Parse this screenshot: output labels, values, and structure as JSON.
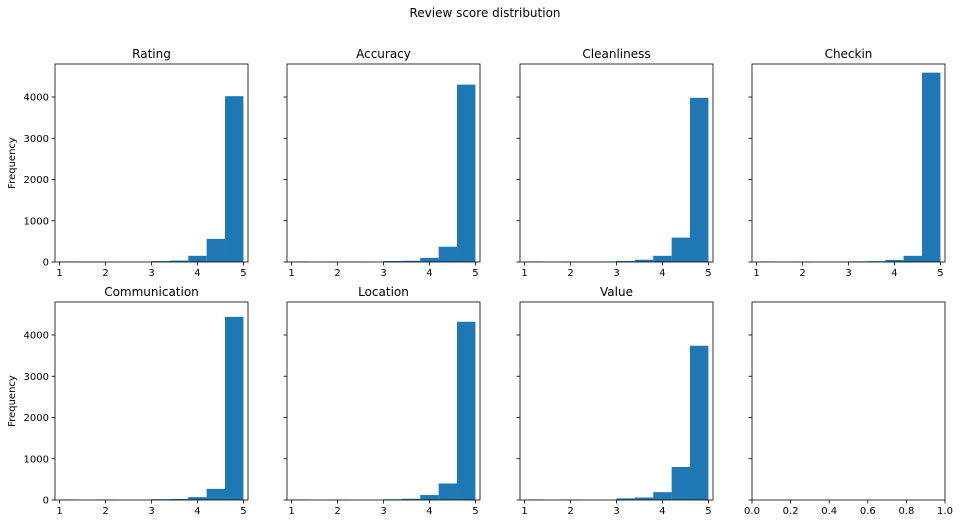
{
  "suptitle": "Review score distribution",
  "chart_data": {
    "type": "bar",
    "title": "Review score distribution",
    "bar_color": "#1f77b4",
    "shared_y": {
      "ylabel": "Frequency",
      "ylim": [
        0,
        4800
      ],
      "yticks": [
        0,
        1000,
        2000,
        3000,
        4000
      ]
    },
    "panels": [
      {
        "title": "Rating",
        "type": "histogram",
        "xlim": [
          0.9,
          5.1
        ],
        "xticks": [
          1,
          2,
          3,
          4,
          5
        ],
        "bin_edges": [
          1.0,
          1.4,
          1.8,
          2.2,
          2.6,
          3.0,
          3.4,
          3.8,
          4.2,
          4.6,
          5.0
        ],
        "counts": [
          12,
          3,
          8,
          2,
          0,
          22,
          35,
          150,
          560,
          4020
        ],
        "ylabel": "Frequency"
      },
      {
        "title": "Accuracy",
        "type": "histogram",
        "xlim": [
          0.9,
          5.1
        ],
        "xticks": [
          1,
          2,
          3,
          4,
          5
        ],
        "bin_edges": [
          1.0,
          1.4,
          1.8,
          2.2,
          2.6,
          3.0,
          3.4,
          3.8,
          4.2,
          4.6,
          5.0
        ],
        "counts": [
          10,
          0,
          8,
          6,
          0,
          25,
          30,
          100,
          370,
          4300
        ],
        "ylabel": ""
      },
      {
        "title": "Cleanliness",
        "type": "histogram",
        "xlim": [
          0.9,
          5.1
        ],
        "xticks": [
          1,
          2,
          3,
          4,
          5
        ],
        "bin_edges": [
          1.0,
          1.4,
          1.8,
          2.2,
          2.6,
          3.0,
          3.4,
          3.8,
          4.2,
          4.6,
          5.0
        ],
        "counts": [
          12,
          0,
          10,
          8,
          6,
          25,
          55,
          150,
          590,
          3980
        ],
        "ylabel": ""
      },
      {
        "title": "Checkin",
        "type": "histogram",
        "xlim": [
          0.9,
          5.1
        ],
        "xticks": [
          1,
          2,
          3,
          4,
          5
        ],
        "bin_edges": [
          1.0,
          1.4,
          1.8,
          2.2,
          2.6,
          3.0,
          3.4,
          3.8,
          4.2,
          4.6,
          5.0
        ],
        "counts": [
          10,
          0,
          8,
          0,
          0,
          15,
          20,
          50,
          150,
          4590
        ],
        "ylabel": ""
      },
      {
        "title": "Communication",
        "type": "histogram",
        "xlim": [
          0.9,
          5.1
        ],
        "xticks": [
          1,
          2,
          3,
          4,
          5
        ],
        "bin_edges": [
          1.0,
          1.4,
          1.8,
          2.2,
          2.6,
          3.0,
          3.4,
          3.8,
          4.2,
          4.6,
          5.0
        ],
        "counts": [
          12,
          0,
          10,
          0,
          0,
          20,
          25,
          70,
          270,
          4440
        ],
        "ylabel": "Frequency"
      },
      {
        "title": "Location",
        "type": "histogram",
        "xlim": [
          0.9,
          5.1
        ],
        "xticks": [
          1,
          2,
          3,
          4,
          5
        ],
        "bin_edges": [
          1.0,
          1.4,
          1.8,
          2.2,
          2.6,
          3.0,
          3.4,
          3.8,
          4.2,
          4.6,
          5.0
        ],
        "counts": [
          10,
          0,
          8,
          0,
          0,
          18,
          30,
          120,
          400,
          4320
        ],
        "ylabel": ""
      },
      {
        "title": "Value",
        "type": "histogram",
        "xlim": [
          0.9,
          5.1
        ],
        "xticks": [
          1,
          2,
          3,
          4,
          5
        ],
        "bin_edges": [
          1.0,
          1.4,
          1.8,
          2.2,
          2.6,
          3.0,
          3.4,
          3.8,
          4.2,
          4.6,
          5.0
        ],
        "counts": [
          12,
          0,
          10,
          0,
          0,
          40,
          60,
          190,
          800,
          3740
        ],
        "ylabel": ""
      },
      {
        "title": "",
        "type": "empty",
        "xlim": [
          0.0,
          1.0
        ],
        "xticks": [
          0.0,
          0.2,
          0.4,
          0.6,
          0.8,
          1.0
        ],
        "xtick_labels": [
          "0.0",
          "0.2",
          "0.4",
          "0.6",
          "0.8",
          "1.0"
        ],
        "bin_edges": [],
        "counts": [],
        "ylabel": ""
      }
    ]
  }
}
